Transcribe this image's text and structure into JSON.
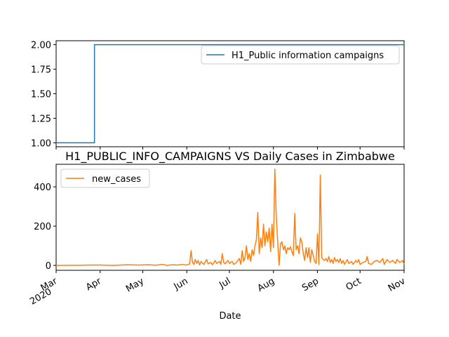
{
  "chart_data": [
    {
      "type": "line",
      "title": "",
      "xlabel": "",
      "ylabel": "",
      "ylim": [
        0.96,
        2.04
      ],
      "yticks": [
        "1.00",
        "1.25",
        "1.50",
        "1.75",
        "2.00"
      ],
      "grid": false,
      "legend_position": "upper-right",
      "series": [
        {
          "name": "H1_Public information campaigns",
          "color": "#1f77b4",
          "points": [
            [
              "2020-03-01",
              1
            ],
            [
              "2020-03-27",
              1
            ],
            [
              "2020-03-28",
              2
            ],
            [
              "2020-11-01",
              2
            ]
          ]
        }
      ]
    },
    {
      "type": "line",
      "title": "H1_PUBLIC_INFO_CAMPAIGNS VS Daily Cases in Zimbabwe",
      "xlabel": "Date",
      "ylabel": "",
      "ylim": [
        -25,
        515
      ],
      "yticks": [
        "0",
        "200",
        "400"
      ],
      "grid": false,
      "legend_position": "upper-left",
      "x_tick_labels": [
        {
          "date": "2020-03-01",
          "label": "Mar",
          "sub": "2020"
        },
        {
          "date": "2020-04-01",
          "label": "Apr"
        },
        {
          "date": "2020-05-01",
          "label": "May"
        },
        {
          "date": "2020-06-01",
          "label": "Jun"
        },
        {
          "date": "2020-07-01",
          "label": "Jul"
        },
        {
          "date": "2020-08-01",
          "label": "Aug"
        },
        {
          "date": "2020-09-01",
          "label": "Sep"
        },
        {
          "date": "2020-10-01",
          "label": "Oct"
        },
        {
          "date": "2020-11-01",
          "label": "Nov"
        }
      ],
      "series": [
        {
          "name": "new_cases",
          "color": "#ff7f0e",
          "points": [
            [
              "2020-03-01",
              0
            ],
            [
              "2020-03-20",
              1
            ],
            [
              "2020-03-25",
              2
            ],
            [
              "2020-04-01",
              2
            ],
            [
              "2020-04-10",
              0
            ],
            [
              "2020-04-20",
              3
            ],
            [
              "2020-04-28",
              2
            ],
            [
              "2020-05-05",
              3
            ],
            [
              "2020-05-10",
              1
            ],
            [
              "2020-05-15",
              5
            ],
            [
              "2020-05-18",
              0
            ],
            [
              "2020-05-22",
              3
            ],
            [
              "2020-05-26",
              2
            ],
            [
              "2020-05-28",
              5
            ],
            [
              "2020-05-30",
              3
            ],
            [
              "2020-06-01",
              2
            ],
            [
              "2020-06-03",
              8
            ],
            [
              "2020-06-04",
              75
            ],
            [
              "2020-06-05",
              15
            ],
            [
              "2020-06-06",
              5
            ],
            [
              "2020-06-07",
              30
            ],
            [
              "2020-06-08",
              10
            ],
            [
              "2020-06-09",
              25
            ],
            [
              "2020-06-10",
              2
            ],
            [
              "2020-06-11",
              20
            ],
            [
              "2020-06-13",
              5
            ],
            [
              "2020-06-15",
              30
            ],
            [
              "2020-06-16",
              8
            ],
            [
              "2020-06-18",
              15
            ],
            [
              "2020-06-19",
              3
            ],
            [
              "2020-06-21",
              25
            ],
            [
              "2020-06-22",
              10
            ],
            [
              "2020-06-24",
              20
            ],
            [
              "2020-06-25",
              5
            ],
            [
              "2020-06-26",
              60
            ],
            [
              "2020-06-27",
              15
            ],
            [
              "2020-06-28",
              8
            ],
            [
              "2020-06-30",
              25
            ],
            [
              "2020-07-01",
              10
            ],
            [
              "2020-07-03",
              20
            ],
            [
              "2020-07-04",
              5
            ],
            [
              "2020-07-06",
              15
            ],
            [
              "2020-07-08",
              35
            ],
            [
              "2020-07-09",
              5
            ],
            [
              "2020-07-10",
              75
            ],
            [
              "2020-07-11",
              20
            ],
            [
              "2020-07-12",
              40
            ],
            [
              "2020-07-13",
              100
            ],
            [
              "2020-07-14",
              30
            ],
            [
              "2020-07-15",
              60
            ],
            [
              "2020-07-16",
              20
            ],
            [
              "2020-07-17",
              80
            ],
            [
              "2020-07-18",
              50
            ],
            [
              "2020-07-19",
              100
            ],
            [
              "2020-07-20",
              130
            ],
            [
              "2020-07-21",
              270
            ],
            [
              "2020-07-22",
              60
            ],
            [
              "2020-07-23",
              140
            ],
            [
              "2020-07-24",
              90
            ],
            [
              "2020-07-25",
              210
            ],
            [
              "2020-07-26",
              100
            ],
            [
              "2020-07-27",
              170
            ],
            [
              "2020-07-28",
              120
            ],
            [
              "2020-07-29",
              190
            ],
            [
              "2020-07-30",
              70
            ],
            [
              "2020-07-31",
              210
            ],
            [
              "2020-08-01",
              90
            ],
            [
              "2020-08-02",
              490
            ],
            [
              "2020-08-03",
              250
            ],
            [
              "2020-08-04",
              120
            ],
            [
              "2020-08-05",
              0
            ],
            [
              "2020-08-06",
              110
            ],
            [
              "2020-08-07",
              120
            ],
            [
              "2020-08-08",
              80
            ],
            [
              "2020-08-09",
              100
            ],
            [
              "2020-08-10",
              60
            ],
            [
              "2020-08-11",
              90
            ],
            [
              "2020-08-12",
              80
            ],
            [
              "2020-08-13",
              95
            ],
            [
              "2020-08-14",
              70
            ],
            [
              "2020-08-15",
              50
            ],
            [
              "2020-08-16",
              265
            ],
            [
              "2020-08-17",
              80
            ],
            [
              "2020-08-18",
              100
            ],
            [
              "2020-08-19",
              60
            ],
            [
              "2020-08-20",
              140
            ],
            [
              "2020-08-21",
              120
            ],
            [
              "2020-08-22",
              60
            ],
            [
              "2020-08-23",
              25
            ],
            [
              "2020-08-24",
              90
            ],
            [
              "2020-08-25",
              40
            ],
            [
              "2020-08-26",
              90
            ],
            [
              "2020-08-27",
              15
            ],
            [
              "2020-08-28",
              80
            ],
            [
              "2020-08-29",
              50
            ],
            [
              "2020-08-30",
              20
            ],
            [
              "2020-08-31",
              10
            ],
            [
              "2020-09-01",
              160
            ],
            [
              "2020-09-02",
              5
            ],
            [
              "2020-09-03",
              460
            ],
            [
              "2020-09-04",
              40
            ],
            [
              "2020-09-05",
              30
            ],
            [
              "2020-09-06",
              25
            ],
            [
              "2020-09-07",
              35
            ],
            [
              "2020-09-08",
              20
            ],
            [
              "2020-09-09",
              45
            ],
            [
              "2020-09-10",
              15
            ],
            [
              "2020-09-11",
              30
            ],
            [
              "2020-09-12",
              10
            ],
            [
              "2020-09-13",
              40
            ],
            [
              "2020-09-14",
              20
            ],
            [
              "2020-09-15",
              30
            ],
            [
              "2020-09-16",
              15
            ],
            [
              "2020-09-17",
              35
            ],
            [
              "2020-09-18",
              10
            ],
            [
              "2020-09-19",
              25
            ],
            [
              "2020-09-20",
              5
            ],
            [
              "2020-09-22",
              30
            ],
            [
              "2020-09-23",
              10
            ],
            [
              "2020-09-25",
              20
            ],
            [
              "2020-09-26",
              5
            ],
            [
              "2020-09-28",
              25
            ],
            [
              "2020-09-29",
              15
            ],
            [
              "2020-09-30",
              30
            ],
            [
              "2020-10-01",
              5
            ],
            [
              "2020-10-03",
              15
            ],
            [
              "2020-10-05",
              20
            ],
            [
              "2020-10-06",
              45
            ],
            [
              "2020-10-07",
              10
            ],
            [
              "2020-10-09",
              5
            ],
            [
              "2020-10-11",
              20
            ],
            [
              "2020-10-13",
              25
            ],
            [
              "2020-10-15",
              15
            ],
            [
              "2020-10-17",
              35
            ],
            [
              "2020-10-18",
              5
            ],
            [
              "2020-10-20",
              30
            ],
            [
              "2020-10-22",
              15
            ],
            [
              "2020-10-24",
              25
            ],
            [
              "2020-10-26",
              10
            ],
            [
              "2020-10-27",
              30
            ],
            [
              "2020-10-29",
              15
            ],
            [
              "2020-10-31",
              25
            ],
            [
              "2020-11-01",
              5
            ]
          ]
        }
      ]
    }
  ]
}
